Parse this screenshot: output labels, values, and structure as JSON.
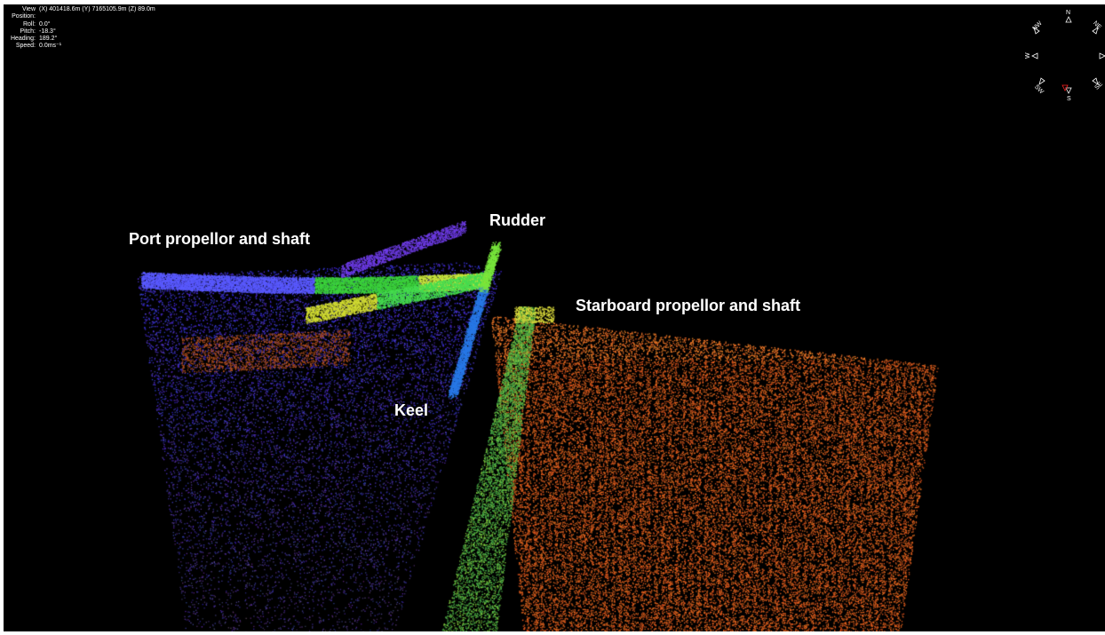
{
  "hud": {
    "view_position_label": "View Position:",
    "view_position_value": "(X) 401418.6m (Y) 7165105.9m (Z) 89.0m",
    "roll_label": "Roll:",
    "roll_value": "0.0°",
    "pitch_label": "Pitch:",
    "pitch_value": "-18.3°",
    "heading_label": "Heading:",
    "heading_value": "189.2°",
    "speed_label": "Speed:",
    "speed_value": "0.0ms⁻¹"
  },
  "annotations": {
    "port": "Port propellor and shaft",
    "rudder": "Rudder",
    "starboard": "Starboard propellor and shaft",
    "keel": "Keel"
  },
  "compass": {
    "n": "N",
    "ne": "NE",
    "e": "E",
    "se": "SE",
    "s": "S",
    "sw": "SW",
    "w": "W",
    "nw": "NW"
  },
  "colors": {
    "background": "#000000",
    "port_blue": "#3a3aff",
    "port_purple": "#5a2aa8",
    "keel_green": "#4cd94c",
    "rudder_yellow": "#e6e636",
    "starboard_orange": "#e8662a",
    "compass_red": "#ff2020"
  }
}
